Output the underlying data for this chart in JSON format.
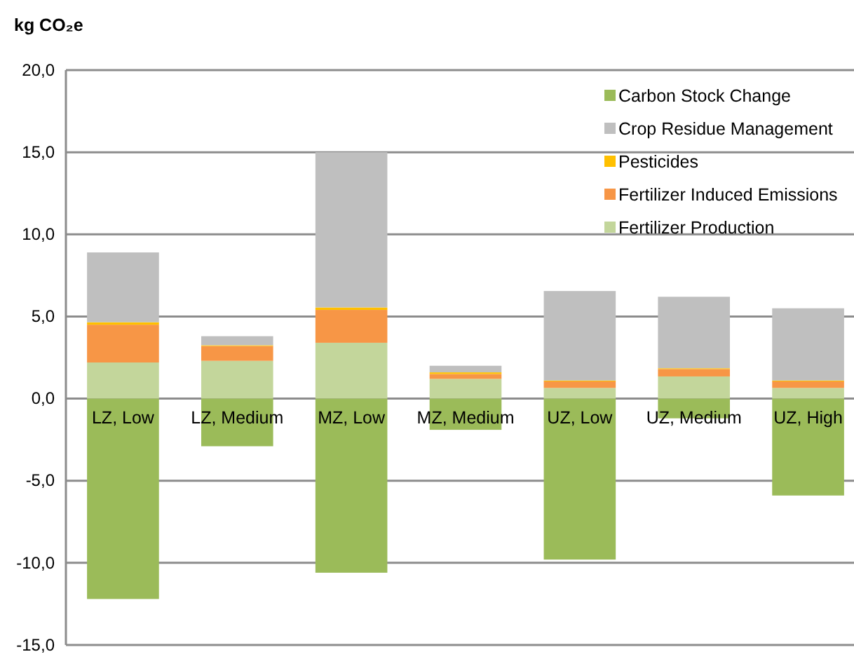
{
  "chart_data": {
    "type": "bar",
    "stacked": true,
    "ylabel": "kg CO₂e",
    "categories": [
      "LZ, Low",
      "LZ, Medium",
      "MZ, Low",
      "MZ, Medium",
      "UZ, Low",
      "UZ, Medium",
      "UZ, High"
    ],
    "series": [
      {
        "name": "Fertilizer Production",
        "color": "#c3d69b",
        "values": [
          2.2,
          2.3,
          3.4,
          1.2,
          0.65,
          1.35,
          0.65
        ]
      },
      {
        "name": "Fertilizer Induced Emissions",
        "color": "#f79646",
        "values": [
          2.3,
          0.9,
          2.0,
          0.3,
          0.4,
          0.45,
          0.4
        ]
      },
      {
        "name": "Pesticides",
        "color": "#ffc000",
        "values": [
          0.15,
          0.05,
          0.15,
          0.1,
          0.05,
          0.05,
          0.05
        ]
      },
      {
        "name": "Crop Residue Management",
        "color": "#bfbfbf",
        "values": [
          4.25,
          0.55,
          9.45,
          0.4,
          5.45,
          4.35,
          4.4
        ]
      },
      {
        "name": "Carbon Stock Change",
        "color": "#9bbb59",
        "values": [
          -12.2,
          -2.9,
          -10.6,
          -1.9,
          -9.8,
          -1.2,
          -5.9
        ]
      }
    ],
    "ylim": [
      -15,
      20
    ],
    "yticks": [
      {
        "value": -15,
        "label": "-15,0"
      },
      {
        "value": -10,
        "label": "-10,0"
      },
      {
        "value": -5,
        "label": "-5,0"
      },
      {
        "value": 0,
        "label": "0,0"
      },
      {
        "value": 5,
        "label": "5,0"
      },
      {
        "value": 10,
        "label": "10,0"
      },
      {
        "value": 15,
        "label": "15,0"
      },
      {
        "value": 20,
        "label": "20,0"
      }
    ],
    "grid": "y",
    "legend": "top right"
  }
}
